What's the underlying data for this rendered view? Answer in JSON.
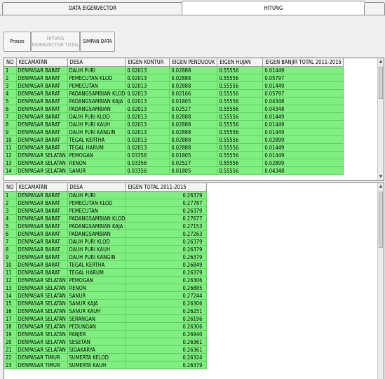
{
  "tabs": [
    "DATA EIGENVECTOR",
    "HITUNG"
  ],
  "buttons": {
    "proses": "Proses",
    "hitung_eigen": "HITUNG EIGENVECTOR TOTAL",
    "simpan": "SIMPAN DATA"
  },
  "grid1": {
    "headers": [
      "NO",
      "KECAMATAN",
      "DESA",
      "EIGEN KONTUR",
      "EIGEN PENDUDUK",
      "EIGEN HUJAN",
      "EIGEN BANJIR TOTAL 2011-2015"
    ],
    "rows": [
      [
        "1",
        "DENPASAR BARAT",
        "DAUH PURI",
        "0.02013",
        "0.02888",
        "0.55556",
        "0.01449"
      ],
      [
        "2",
        "DENPASAR BARAT",
        "PEMECUTAN KLOD",
        "0.02013",
        "0.02888",
        "0.55556",
        "0.05797"
      ],
      [
        "3",
        "DENPASAR BARAT",
        "PEMECUTAN",
        "0.02013",
        "0.02888",
        "0.55556",
        "0.01449"
      ],
      [
        "4",
        "DENPASAR BARAT",
        "PADANGSAMBIAN KLOD",
        "0.02013",
        "0.02166",
        "0.55556",
        "0.05797"
      ],
      [
        "5",
        "DENPASAR BARAT",
        "PADANGSAMBIAN KAJA",
        "0.02013",
        "0.01805",
        "0.55556",
        "0.04348"
      ],
      [
        "6",
        "DENPASAR BARAT",
        "PADANGSAMBIAN",
        "0.02013",
        "0.02527",
        "0.55556",
        "0.04348"
      ],
      [
        "7",
        "DENPASAR BARAT",
        "DAUH PURI KLOD",
        "0.02013",
        "0.02888",
        "0.55556",
        "0.01449"
      ],
      [
        "8",
        "DENPASAR BARAT",
        "DAUH PURI KAUH",
        "0.02013",
        "0.02888",
        "0.55556",
        "0.01449"
      ],
      [
        "9",
        "DENPASAR BARAT",
        "DAUH PURI KANGIN",
        "0.02013",
        "0.02888",
        "0.55556",
        "0.01449"
      ],
      [
        "10",
        "DENPASAR BARAT",
        "TEGAL KERTHA",
        "0.02013",
        "0.02888",
        "0.55556",
        "0.02899"
      ],
      [
        "11",
        "DENPASAR BARAT",
        "TEGAL HARUM",
        "0.02013",
        "0.02888",
        "0.55556",
        "0.01449"
      ],
      [
        "12",
        "DENPASAR SELATAN",
        "PEMOGAN",
        "0.03356",
        "0.01805",
        "0.55556",
        "0.01449"
      ],
      [
        "13",
        "DENPASAR SELATAN",
        "RENON",
        "0.03356",
        "0.02527",
        "0.55556",
        "0.02899"
      ],
      [
        "14",
        "DENPASAR SELATAN",
        "SANUR",
        "0.03356",
        "0.01805",
        "0.55556",
        "0.04348"
      ]
    ]
  },
  "grid2": {
    "headers": [
      "NO",
      "KECAMATAN",
      "DESA",
      "EIGEN TOTAL 2011-2015"
    ],
    "rows": [
      [
        "1",
        "DENPASAR BARAT",
        "DAUH PURI",
        "0.26379"
      ],
      [
        "2",
        "DENPASAR BARAT",
        "PEMECUTAN KLOD",
        "0.27787"
      ],
      [
        "3",
        "DENPASAR BARAT",
        "PEMECUTAN",
        "0.26379"
      ],
      [
        "4",
        "DENPASAR BARAT",
        "PADANGSAMBIAN KLOD",
        "0.27677"
      ],
      [
        "5",
        "DENPASAR BARAT",
        "PADANGSAMBIAN KAJA",
        "0.27153"
      ],
      [
        "6",
        "DENPASAR BARAT",
        "PADANGSAMBIAN",
        "0.27263"
      ],
      [
        "7",
        "DENPASAR BARAT",
        "DAUH PURI KLOD",
        "0.26379"
      ],
      [
        "8",
        "DENPASAR BARAT",
        "DAUH PURI KAUH",
        "0.26379"
      ],
      [
        "9",
        "DENPASAR BARAT",
        "DAUH PURI KANGIN",
        "0.26379"
      ],
      [
        "10",
        "DENPASAR BARAT",
        "TEGAL KERTHA",
        "0.26849"
      ],
      [
        "11",
        "DENPASAR BARAT",
        "TEGAL HARUM",
        "0.26379"
      ],
      [
        "12",
        "DENPASAR SELATAN",
        "PEMOGAN",
        "0.26306"
      ],
      [
        "13",
        "DENPASAR SELATAN",
        "RENON",
        "0.26885"
      ],
      [
        "14",
        "DENPASAR SELATAN",
        "SANUR",
        "0.27244"
      ],
      [
        "15",
        "DENPASAR SELATAN",
        "SANUR KAJA",
        "0.26306"
      ],
      [
        "16",
        "DENPASAR SELATAN",
        "SANUR KAUH",
        "0.26251"
      ],
      [
        "17",
        "DENPASAR SELATAN",
        "SERANGAN",
        "0.26196"
      ],
      [
        "18",
        "DENPASAR SELATAN",
        "PEDUNGAN",
        "0.26306"
      ],
      [
        "19",
        "DENPASAR SELATAN",
        "PANJER",
        "0.26940"
      ],
      [
        "20",
        "DENPASAR SELATAN",
        "SESETAN",
        "0.26361"
      ],
      [
        "21",
        "DENPASAR SELATAN",
        "SIDAKARYA",
        "0.26361"
      ],
      [
        "22",
        "DENPASAR TIMUR",
        "SUMERTA KELOD",
        "0.26324"
      ],
      [
        "23",
        "DENPASAR TIMUR",
        "SUMERTA KAUH",
        "0.26379"
      ]
    ]
  }
}
